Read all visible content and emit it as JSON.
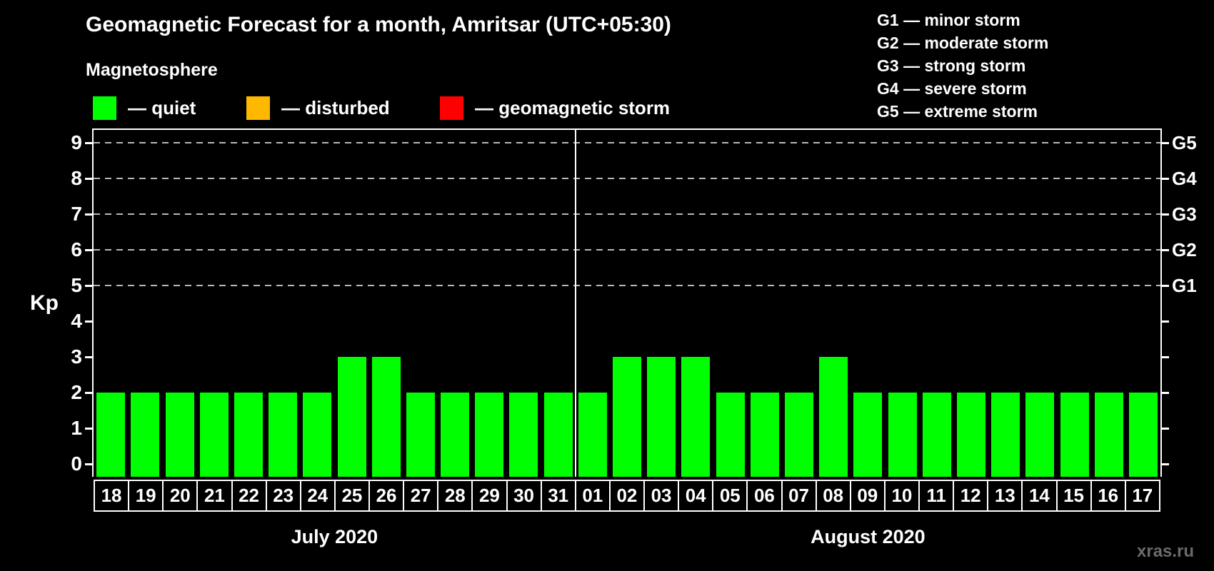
{
  "header": {
    "title": "Geomagnetic Forecast for a month, Amritsar (UTC+05:30)",
    "subtitle": "Magnetosphere"
  },
  "legend": [
    {
      "name": "quiet",
      "color": "#00ff00",
      "label": "— quiet"
    },
    {
      "name": "disturbed",
      "color": "#ffb800",
      "label": "— disturbed"
    },
    {
      "name": "geomagnetic-storm",
      "color": "#ff0000",
      "label": "— geomagnetic storm"
    }
  ],
  "g_scale_legend": [
    "G1 — minor storm",
    "G2 — moderate storm",
    "G3 — strong storm",
    "G4 — severe storm",
    "G5 — extreme storm"
  ],
  "watermark": "xras.ru",
  "chart_data": {
    "type": "bar",
    "title": "Geomagnetic Forecast for a month, Amritsar (UTC+05:30)",
    "ylabel": "Kp",
    "ylim": [
      0,
      9
    ],
    "y_ticks": [
      0,
      1,
      2,
      3,
      4,
      5,
      6,
      7,
      8,
      9
    ],
    "grid": "horizontal dashed lines at Kp 5-9 only",
    "legend_position": "top-left",
    "bar_color": "#00ff00",
    "right_axis": [
      {
        "label": "G1",
        "kp": 5
      },
      {
        "label": "G2",
        "kp": 6
      },
      {
        "label": "G3",
        "kp": 7
      },
      {
        "label": "G4",
        "kp": 8
      },
      {
        "label": "G5",
        "kp": 9
      }
    ],
    "months": [
      {
        "label": "July 2020",
        "days": [
          "18",
          "19",
          "20",
          "21",
          "22",
          "23",
          "24",
          "25",
          "26",
          "27",
          "28",
          "29",
          "30",
          "31"
        ],
        "values": [
          2,
          2,
          2,
          2,
          2,
          2,
          2,
          3,
          3,
          2,
          2,
          2,
          2,
          2
        ]
      },
      {
        "label": "August 2020",
        "days": [
          "01",
          "02",
          "03",
          "04",
          "05",
          "06",
          "07",
          "08",
          "09",
          "10",
          "11",
          "12",
          "13",
          "14",
          "15",
          "16",
          "17"
        ],
        "values": [
          2,
          3,
          3,
          3,
          2,
          2,
          2,
          3,
          2,
          2,
          2,
          2,
          2,
          2,
          2,
          2,
          2
        ]
      }
    ]
  }
}
